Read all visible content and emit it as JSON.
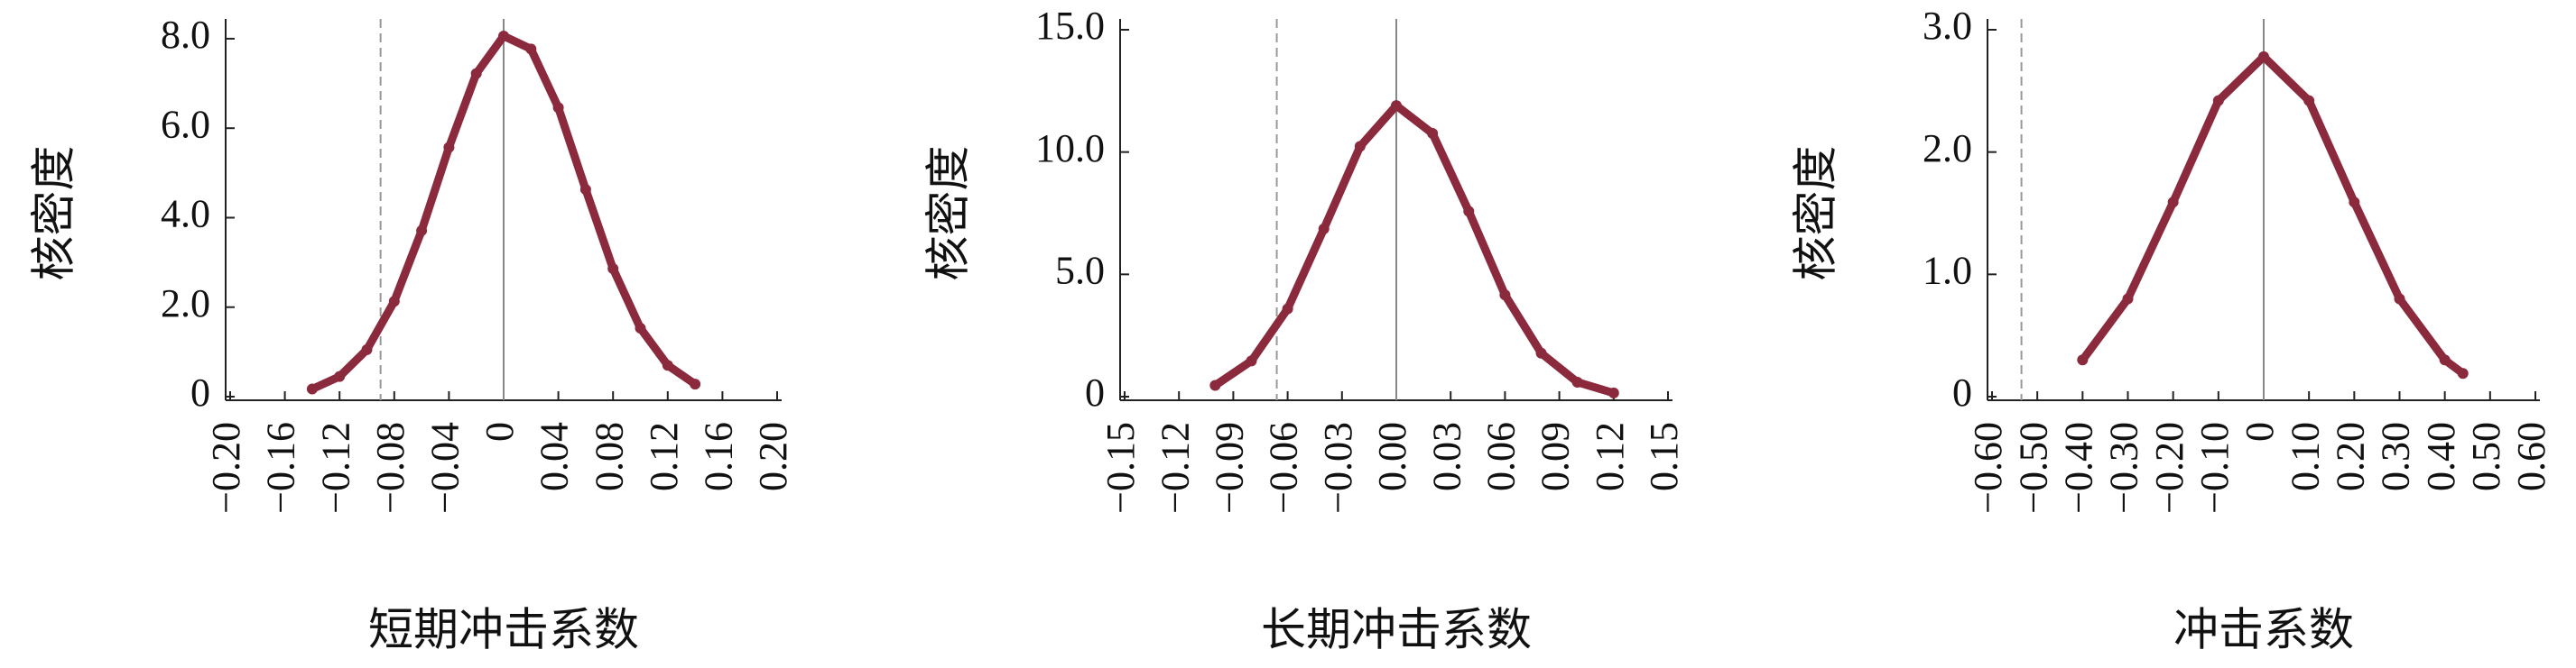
{
  "chart_data": [
    {
      "type": "line",
      "xlabel": "短期冲击系数",
      "ylabel": "核密度",
      "color": "#8b2a3c",
      "markers": true,
      "x": [
        -0.14,
        -0.12,
        -0.1,
        -0.08,
        -0.06,
        -0.04,
        -0.02,
        0,
        0.02,
        0.04,
        0.06,
        0.08,
        0.1,
        0.12,
        0.14
      ],
      "values": [
        0.17,
        0.45,
        1.05,
        2.13,
        3.71,
        5.57,
        7.22,
        8.06,
        7.77,
        6.46,
        4.63,
        2.86,
        1.53,
        0.7,
        0.28
      ],
      "xlim": [
        -0.2,
        0.2
      ],
      "xticks": [
        {
          "value": -0.2,
          "label": "−0.20"
        },
        {
          "value": -0.16,
          "label": "−0.16"
        },
        {
          "value": -0.12,
          "label": "−0.12"
        },
        {
          "value": -0.08,
          "label": "−0.08"
        },
        {
          "value": -0.04,
          "label": "−0.04"
        },
        0,
        0.04,
        0.08,
        0.12,
        0.16,
        {
          "value": 0.2,
          "label": "0.20"
        }
      ],
      "ylim": [
        0,
        8.2
      ],
      "yticks": [
        0,
        {
          "value": 2,
          "label": "2.0"
        },
        {
          "value": 4,
          "label": "4.0"
        },
        {
          "value": 6,
          "label": "6.0"
        },
        {
          "value": 8,
          "label": "8.0"
        }
      ],
      "reference_lines": [
        {
          "x": -0.09,
          "style": "dashed"
        },
        {
          "x": 0,
          "style": "solid"
        }
      ]
    },
    {
      "type": "line",
      "xlabel": "长期冲击系数",
      "ylabel": "核密度",
      "color": "#8b2a3c",
      "markers": true,
      "x": [
        -0.1,
        -0.08,
        -0.06,
        -0.04,
        -0.02,
        0,
        0.02,
        0.04,
        0.06,
        0.08,
        0.1,
        0.12
      ],
      "values": [
        0.46,
        1.46,
        3.59,
        6.86,
        10.23,
        11.9,
        10.76,
        7.58,
        4.16,
        1.78,
        0.59,
        0.15
      ],
      "xlim": [
        -0.15,
        0.15
      ],
      "xticks": [
        {
          "value": -0.15,
          "label": "−0.15"
        },
        {
          "value": -0.12,
          "label": "−0.12"
        },
        {
          "value": -0.09,
          "label": "−0.09"
        },
        {
          "value": -0.06,
          "label": "−0.06"
        },
        {
          "value": -0.03,
          "label": "−0.03"
        },
        {
          "value": 0,
          "label": "0.00"
        },
        0.03,
        0.06,
        0.09,
        0.12,
        0.15
      ],
      "ylim": [
        0,
        15
      ],
      "yticks": [
        0,
        {
          "value": 5,
          "label": "5.0"
        },
        {
          "value": 10,
          "label": "10.0"
        },
        {
          "value": 15,
          "label": "15.0"
        }
      ],
      "reference_lines": [
        {
          "x": -0.066,
          "style": "dashed"
        },
        {
          "x": 0,
          "style": "solid"
        }
      ]
    },
    {
      "type": "line",
      "xlabel": "冲击系数",
      "ylabel": "核密度",
      "color": "#8b2a3c",
      "markers": true,
      "x": [
        -0.4,
        -0.3,
        -0.2,
        -0.1,
        0,
        0.1,
        0.2,
        0.3,
        0.4,
        0.44
      ],
      "values": [
        0.3,
        0.8,
        1.59,
        2.42,
        2.78,
        2.42,
        1.59,
        0.8,
        0.3,
        0.19
      ],
      "xlim": [
        -0.6,
        0.6
      ],
      "xticks": [
        {
          "value": -0.6,
          "label": "−0.60"
        },
        {
          "value": -0.5,
          "label": "−0.50"
        },
        {
          "value": -0.4,
          "label": "−0.40"
        },
        {
          "value": -0.3,
          "label": "−0.30"
        },
        {
          "value": -0.2,
          "label": "−0.20"
        },
        {
          "value": -0.1,
          "label": "−0.10"
        },
        0,
        {
          "value": 0.1,
          "label": "0.10"
        },
        {
          "value": 0.2,
          "label": "0.20"
        },
        {
          "value": 0.3,
          "label": "0.30"
        },
        {
          "value": 0.4,
          "label": "0.40"
        },
        {
          "value": 0.5,
          "label": "0.50"
        },
        {
          "value": 0.6,
          "label": "0.60"
        }
      ],
      "ylim": [
        0,
        3
      ],
      "yticks": [
        0,
        {
          "value": 1,
          "label": "1.0"
        },
        {
          "value": 2,
          "label": "2.0"
        },
        {
          "value": 3,
          "label": "3.0"
        }
      ],
      "reference_lines": [
        {
          "x": -0.535,
          "style": "dashed"
        },
        {
          "x": 0,
          "style": "solid"
        }
      ]
    }
  ]
}
